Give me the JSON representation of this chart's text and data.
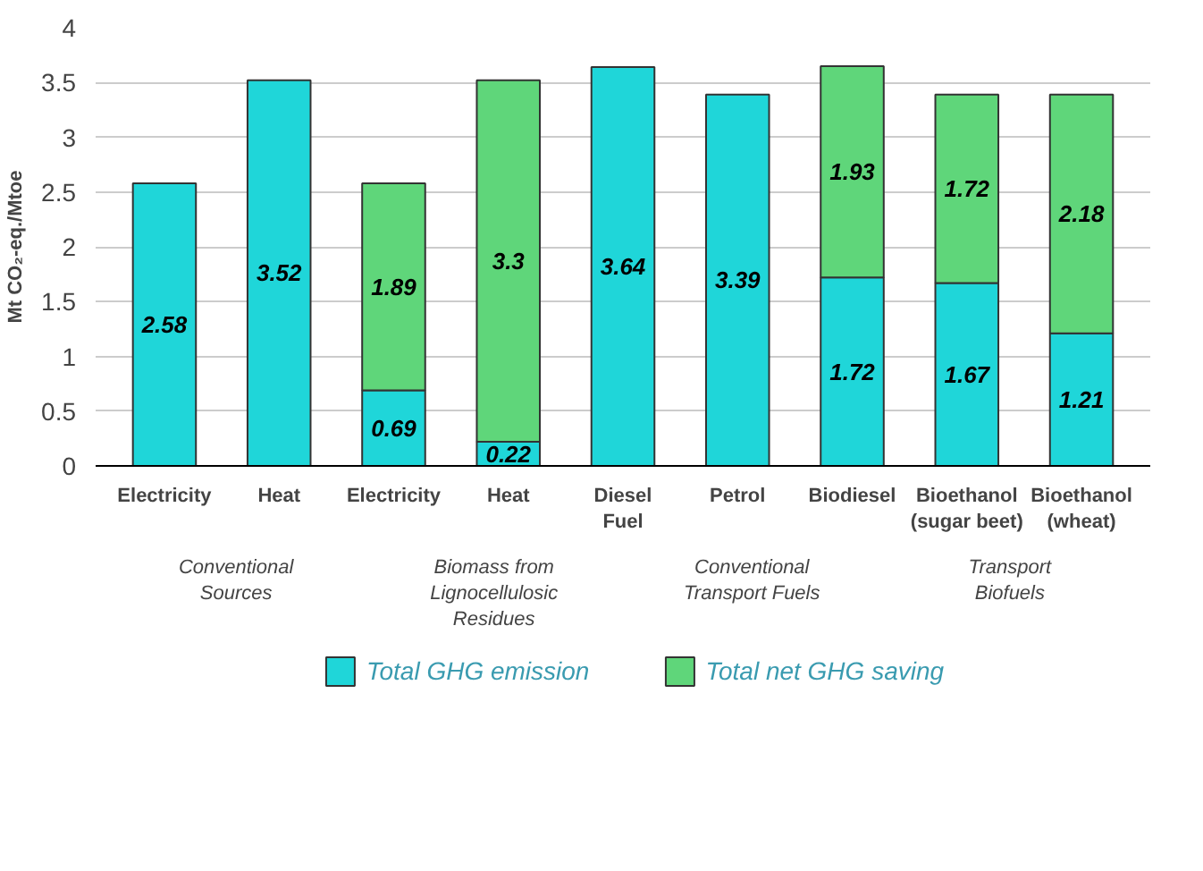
{
  "chart_data": {
    "type": "bar",
    "stacked": true,
    "ylabel": "Mt CO₂-eq./Mtoe",
    "categories": [
      "Electricity",
      "Heat",
      "Electricity",
      "Heat",
      "Diesel\nFuel",
      "Petrol",
      "Biodiesel",
      "Bioethanol\n(sugar beet)",
      "Bioethanol\n(wheat)"
    ],
    "series": [
      {
        "name": "Total GHG emission",
        "color": "#1fd6d9",
        "values": [
          2.58,
          3.52,
          0.69,
          0.22,
          3.64,
          3.39,
          1.72,
          1.67,
          1.21
        ]
      },
      {
        "name": "Total net GHG saving",
        "color": "#5fd67a",
        "values": [
          null,
          null,
          1.89,
          3.3,
          null,
          null,
          1.93,
          1.72,
          2.18
        ]
      }
    ],
    "ylim": [
      0,
      4
    ],
    "yticks": [
      0,
      0.5,
      1,
      1.5,
      2,
      2.5,
      3,
      3.5,
      4
    ],
    "grid": "y",
    "legend": "bottom",
    "data_labels": true,
    "annotations": [
      "Conventional\nSources",
      "Biomass from\nLignocellulosic\nResidues",
      "Conventional\nTransport Fuels",
      "Transport\nBiofuels"
    ]
  }
}
